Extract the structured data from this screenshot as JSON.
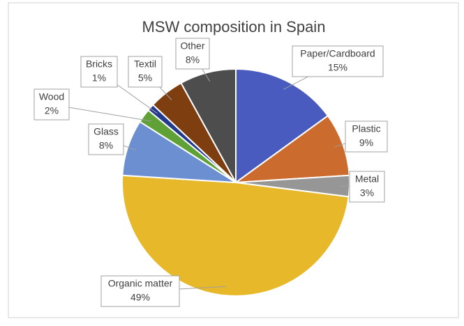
{
  "chart_data": {
    "type": "pie",
    "title": "MSW composition in Spain",
    "categories": [
      "Paper/Cardboard",
      "Plastic",
      "Metal",
      "Organic matter",
      "Glass",
      "Wood",
      "Bricks",
      "Textil",
      "Other"
    ],
    "values": [
      15,
      9,
      3,
      49,
      8,
      2,
      1,
      5,
      8
    ],
    "value_labels": [
      "15%",
      "9%",
      "3%",
      "49%",
      "8%",
      "2%",
      "1%",
      "5%",
      "8%"
    ],
    "colors": [
      "#4a5bbf",
      "#cc6b2e",
      "#969696",
      "#e6b82a",
      "#6b8fd1",
      "#5fa037",
      "#243a8c",
      "#7f3e10",
      "#4d4d4d"
    ]
  }
}
